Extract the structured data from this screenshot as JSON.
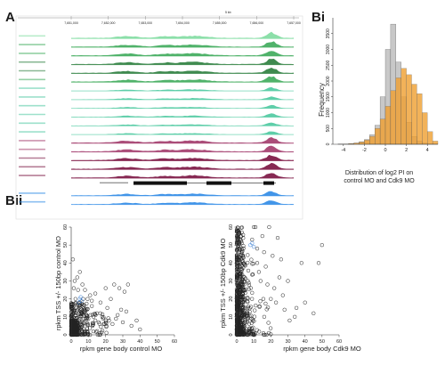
{
  "panels": {
    "a": "A",
    "bi": "Bi",
    "bii": "Bii"
  },
  "colors": {
    "green_light": "#7fdca0",
    "green_mid": "#3daa5a",
    "green_dark": "#2a7d3c",
    "teal": "#4cc9a0",
    "maroon_light": "#a23a6a",
    "maroon_dark": "#7a1240",
    "blue": "#2e8ae6",
    "hist_grey": "#c8c8c8",
    "hist_orange": "#f0a030",
    "scatter": "#222222",
    "scatter_blue": "#3b7fd4"
  },
  "chart_data": [
    {
      "id": "browser",
      "type": "area",
      "coordinates": [
        "7,651,000",
        "7,652,000",
        "7,653,000",
        "7,654,000",
        "7,655,000",
        "7,656,000",
        "7,657,000"
      ],
      "scale_label": "5 kb",
      "track_groups": [
        {
          "color": "green_light",
          "count": 6
        },
        {
          "color": "teal",
          "count": 6
        },
        {
          "color": "maroon_dark",
          "count": 5
        },
        {
          "color": "blue",
          "count": 2
        }
      ]
    },
    {
      "id": "histogram",
      "type": "bar",
      "xlabel": "Distribution of log2 PI on\ncontrol MO and Cdk9 MO",
      "ylabel": "Frequency",
      "xlim": [
        -5,
        5
      ],
      "ylim": [
        0,
        4000
      ],
      "xticks": [
        -4,
        -2,
        0,
        2,
        4
      ],
      "yticks": [
        0,
        500,
        1000,
        1500,
        2000,
        2500,
        3000,
        3500
      ],
      "bin_edges": [
        -5,
        -4.5,
        -4,
        -3.5,
        -3,
        -2.5,
        -2,
        -1.5,
        -1,
        -0.5,
        0,
        0.5,
        1,
        1.5,
        2,
        2.5,
        3,
        3.5,
        4,
        4.5,
        5
      ],
      "series": [
        {
          "values": [
            0,
            5,
            10,
            20,
            40,
            80,
            150,
            300,
            600,
            1500,
            3000,
            3800,
            2600,
            1500,
            700,
            250,
            100,
            40,
            10,
            5
          ],
          "color": "hist_grey"
        },
        {
          "values": [
            0,
            5,
            10,
            20,
            40,
            70,
            130,
            250,
            500,
            800,
            1200,
            1700,
            2100,
            2400,
            2200,
            1900,
            1600,
            1000,
            400,
            100
          ],
          "color": "hist_orange"
        }
      ]
    },
    {
      "id": "scatter-control",
      "type": "scatter",
      "xlabel": "rpkm gene body control MO",
      "ylabel": "rpkm TSS +/- 150bp control MO",
      "xlim": [
        0,
        60
      ],
      "ylim": [
        0,
        60
      ],
      "xticks": [
        0,
        10,
        20,
        30,
        40,
        50,
        60
      ],
      "yticks": [
        0,
        10,
        20,
        30,
        40,
        50,
        60
      ],
      "points": [
        [
          1.0,
          42
        ],
        [
          2.5,
          20
        ],
        [
          3,
          15
        ],
        [
          4,
          25
        ],
        [
          5,
          18
        ],
        [
          6,
          12
        ],
        [
          7,
          20
        ],
        [
          8,
          14
        ],
        [
          9,
          11
        ],
        [
          10,
          9
        ],
        [
          11,
          22
        ],
        [
          12,
          16
        ],
        [
          13,
          10
        ],
        [
          14,
          8
        ],
        [
          15,
          12
        ],
        [
          16,
          7
        ],
        [
          18,
          10
        ],
        [
          19,
          6
        ],
        [
          20,
          26
        ],
        [
          22,
          8
        ],
        [
          24,
          6
        ],
        [
          25,
          28
        ],
        [
          26,
          9
        ],
        [
          28,
          26
        ],
        [
          30,
          7
        ],
        [
          31,
          24
        ],
        [
          33,
          28
        ],
        [
          35,
          5
        ],
        [
          38,
          8
        ],
        [
          40,
          3
        ],
        [
          2,
          30
        ],
        [
          1.5,
          26
        ],
        [
          3.5,
          32
        ],
        [
          5,
          35
        ],
        [
          6.5,
          28
        ],
        [
          8,
          25
        ],
        [
          9.5,
          20
        ],
        [
          12,
          19
        ],
        [
          14,
          23
        ],
        [
          17,
          18
        ],
        [
          21,
          15
        ],
        [
          23,
          20
        ],
        [
          27,
          11
        ],
        [
          29,
          14
        ],
        [
          32,
          13
        ]
      ],
      "highlight": [
        [
          4.5,
          18
        ],
        [
          5,
          20
        ],
        [
          5.5,
          21
        ],
        [
          6,
          19
        ]
      ],
      "dense_clusters": [
        {
          "x": [
            0,
            4
          ],
          "y": [
            0,
            8
          ],
          "n": 260
        },
        {
          "x": [
            0,
            10
          ],
          "y": [
            0,
            18
          ],
          "n": 180
        },
        {
          "x": [
            0,
            22
          ],
          "y": [
            0,
            12
          ],
          "n": 90
        }
      ]
    },
    {
      "id": "scatter-cdk9",
      "type": "scatter",
      "xlabel": "rpkm gene body Cdk9 MO",
      "ylabel": "rpkm TSS +/- 150bp Cdk9 MO",
      "xlim": [
        0,
        60
      ],
      "ylim": [
        0,
        60
      ],
      "xticks": [
        0,
        10,
        20,
        30,
        40,
        50,
        60
      ],
      "yticks": [
        0,
        10,
        20,
        30,
        40,
        50,
        60
      ],
      "points": [
        [
          10,
          60
        ],
        [
          11,
          60
        ],
        [
          12,
          48
        ],
        [
          9,
          53
        ],
        [
          15,
          55
        ],
        [
          16,
          46
        ],
        [
          19,
          60
        ],
        [
          21,
          44
        ],
        [
          22,
          26
        ],
        [
          24,
          54
        ],
        [
          26,
          42
        ],
        [
          30,
          30
        ],
        [
          34,
          10
        ],
        [
          35,
          15
        ],
        [
          38,
          40
        ],
        [
          48,
          40
        ],
        [
          50,
          50
        ],
        [
          45,
          12
        ],
        [
          40,
          18
        ],
        [
          13,
          35
        ],
        [
          12,
          40
        ],
        [
          14,
          30
        ],
        [
          17,
          38
        ],
        [
          18,
          28
        ],
        [
          20,
          20
        ],
        [
          23,
          18
        ],
        [
          25,
          32
        ],
        [
          27,
          22
        ],
        [
          28,
          14
        ],
        [
          31,
          8
        ]
      ],
      "highlight": [
        [
          8,
          50
        ],
        [
          9,
          51
        ],
        [
          10,
          49
        ]
      ],
      "dense_clusters": [
        {
          "x": [
            0,
            4
          ],
          "y": [
            0,
            60
          ],
          "n": 420
        },
        {
          "x": [
            0,
            10
          ],
          "y": [
            0,
            45
          ],
          "n": 200
        },
        {
          "x": [
            0,
            20
          ],
          "y": [
            0,
            20
          ],
          "n": 100
        }
      ]
    }
  ]
}
